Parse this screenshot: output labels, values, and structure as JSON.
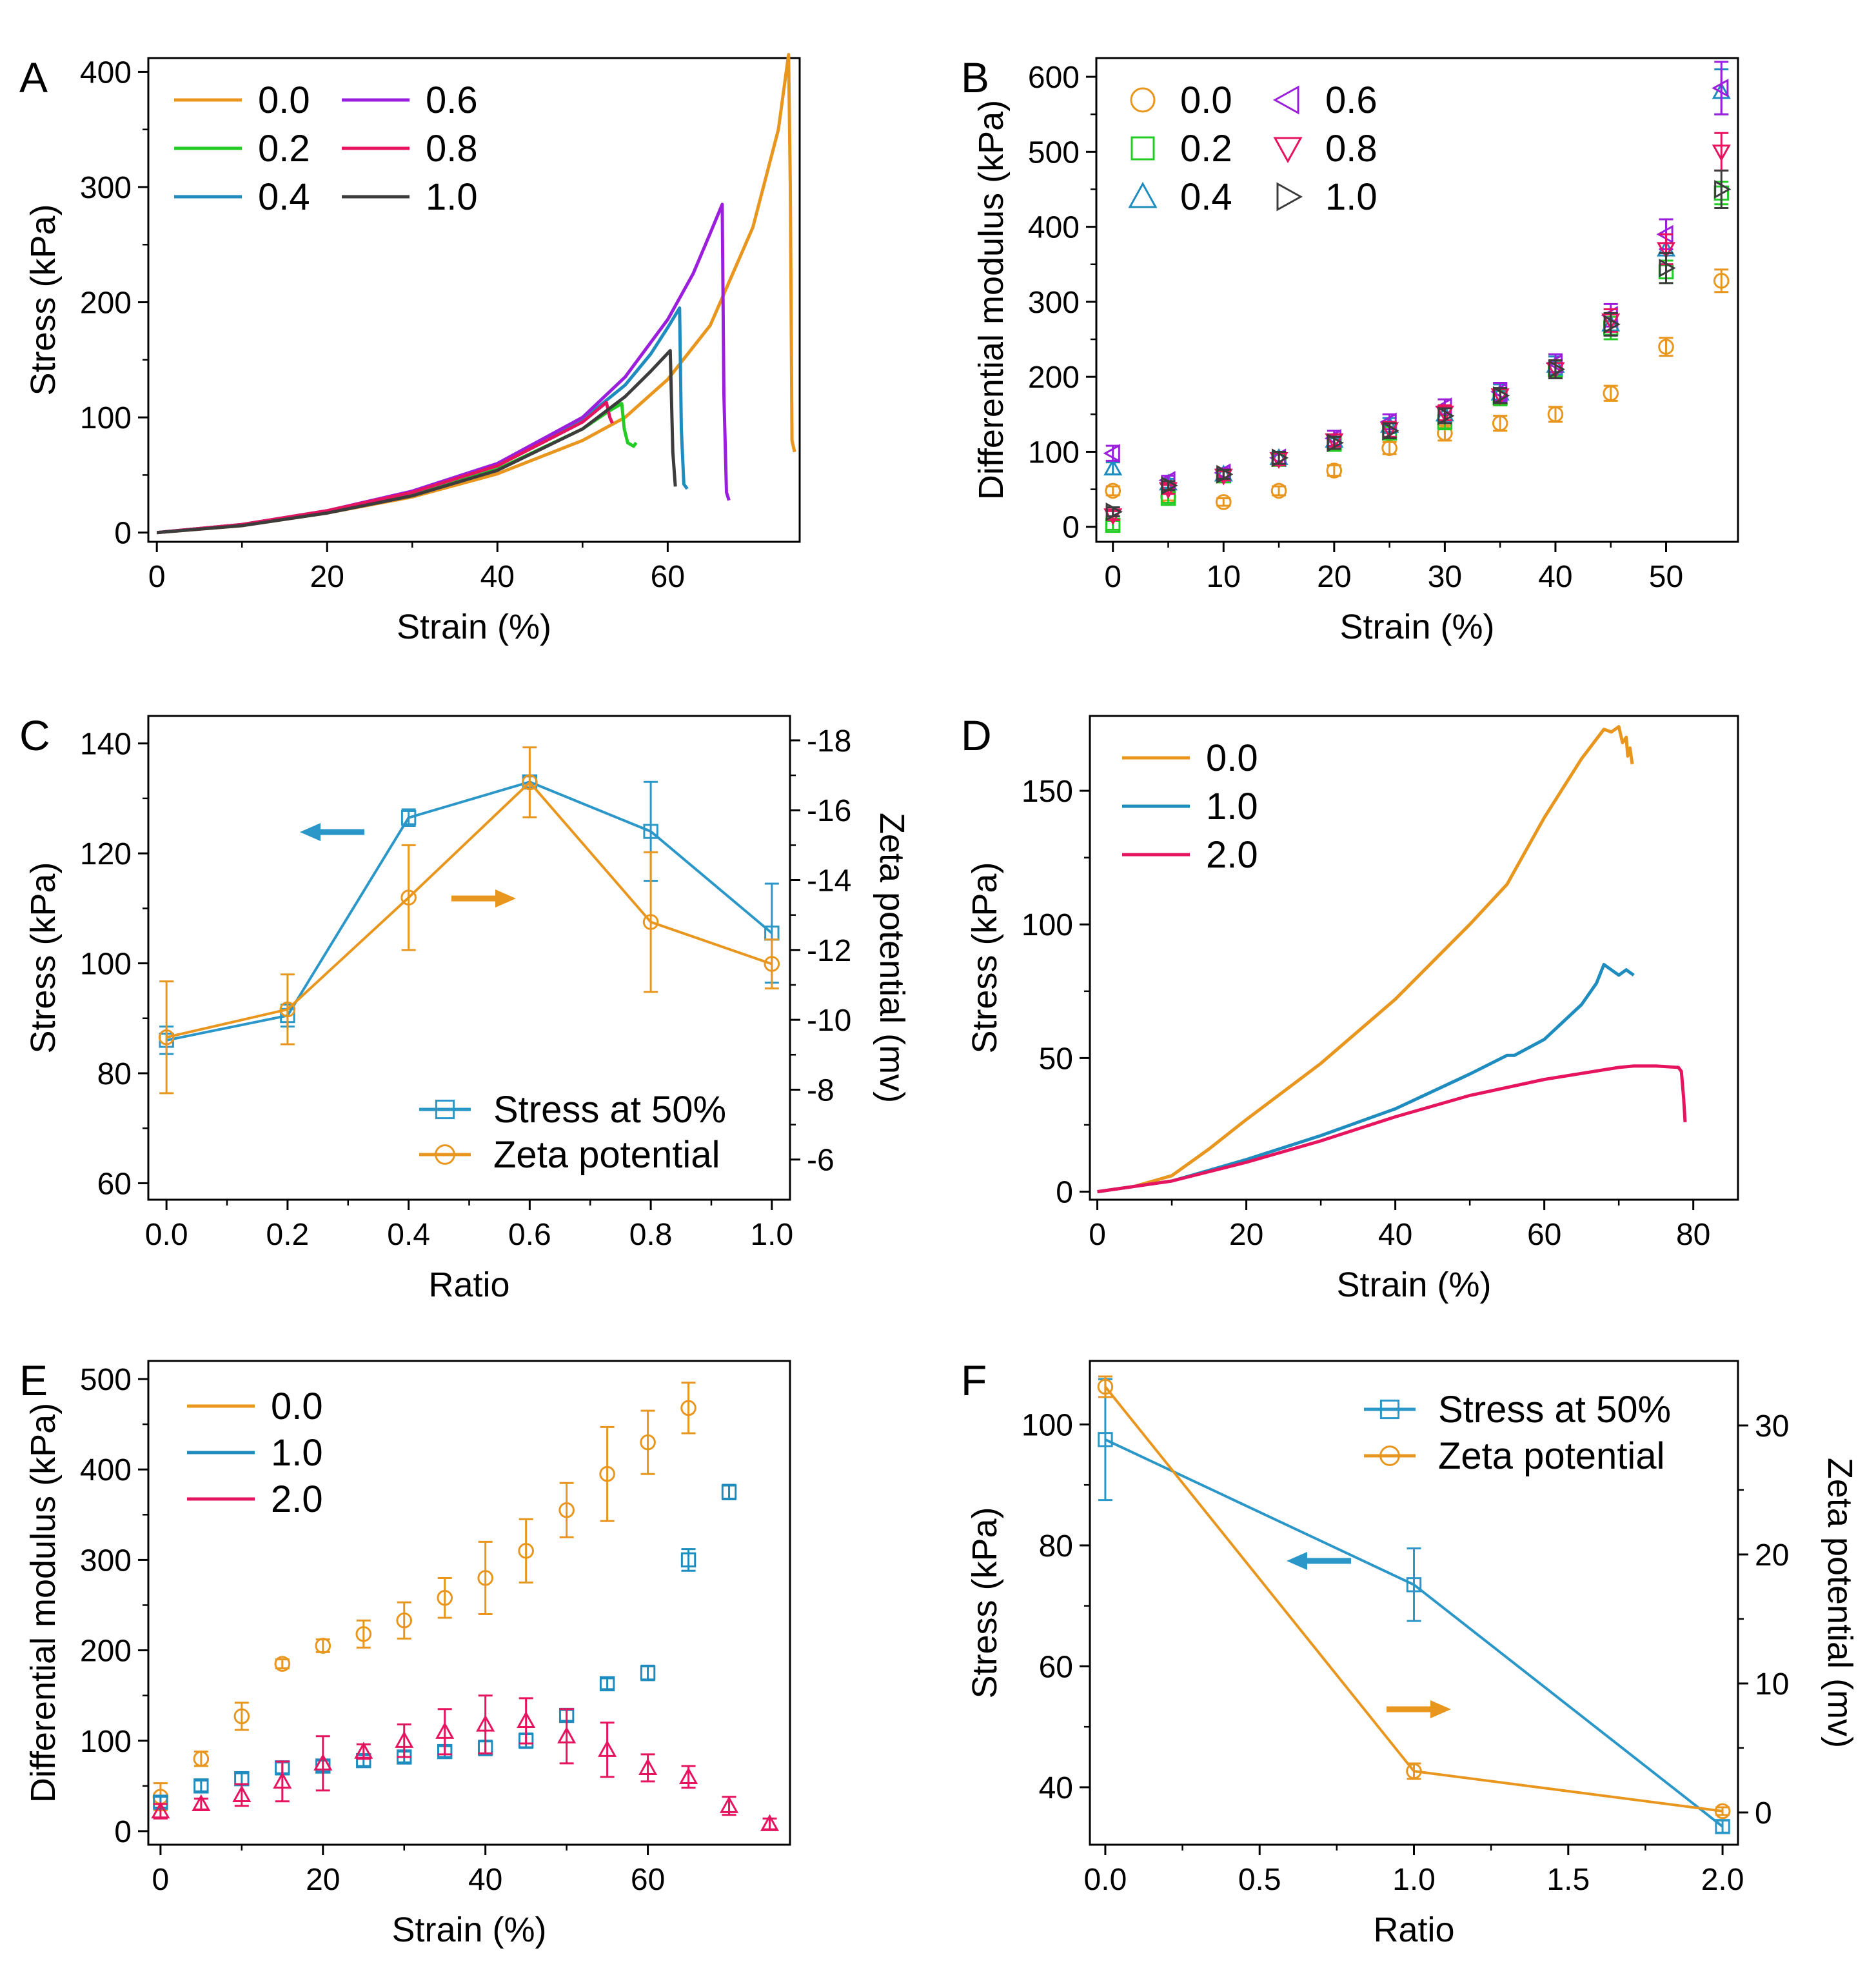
{
  "colors": {
    "c0": "#E8961E",
    "c02": "#22CC22",
    "c04": "#1E8CBE",
    "c06": "#9A1EDC",
    "c08": "#E6145F",
    "c10": "#3C3C3C",
    "blue": "#2A97C8",
    "orange": "#E8961E"
  },
  "chart_data": [
    {
      "id": "A",
      "panel_label": "A",
      "type": "line",
      "xlabel": "Strain (%)",
      "ylabel": "Stress (kPa)",
      "xlim": [
        -1,
        75.5
      ],
      "ylim": [
        -8,
        412
      ],
      "xticks": [
        "0",
        "20",
        "40",
        "60"
      ],
      "yticks": [
        "0",
        "100",
        "200",
        "300",
        "400"
      ],
      "legend": [
        "0.0",
        "0.2",
        "0.4",
        "0.6",
        "0.8",
        "1.0"
      ],
      "series": [
        {
          "name": "0.0",
          "color": "c0",
          "x": [
            0,
            10,
            20,
            30,
            40,
            50,
            55,
            60,
            65,
            70,
            73,
            74.2,
            74.4,
            74.6,
            74.9
          ],
          "y": [
            0,
            6,
            17,
            31,
            51,
            80,
            100,
            133,
            180,
            265,
            350,
            415,
            300,
            80,
            70
          ]
        },
        {
          "name": "0.2",
          "color": "c02",
          "x": [
            0,
            10,
            20,
            30,
            40,
            50,
            53,
            54.6,
            54.9,
            55.3,
            56,
            56.3
          ],
          "y": [
            0,
            7,
            18,
            33,
            55,
            90,
            105,
            112,
            90,
            78,
            75,
            78
          ]
        },
        {
          "name": "0.4",
          "color": "c04",
          "x": [
            0,
            10,
            20,
            30,
            40,
            50,
            55,
            58,
            60,
            61.4,
            61.6,
            61.9,
            62.3
          ],
          "y": [
            0,
            7,
            19,
            35,
            58,
            98,
            128,
            155,
            178,
            195,
            90,
            42,
            38
          ]
        },
        {
          "name": "0.6",
          "color": "c06",
          "x": [
            0,
            10,
            20,
            30,
            40,
            50,
            55,
            60,
            63,
            65,
            66.4,
            66.6,
            66.9,
            67.2
          ],
          "y": [
            0,
            7,
            19,
            36,
            60,
            100,
            135,
            185,
            225,
            260,
            285,
            120,
            35,
            28
          ]
        },
        {
          "name": "0.8",
          "color": "c08",
          "x": [
            0,
            10,
            20,
            30,
            40,
            50,
            52.8,
            53.2,
            53.5
          ],
          "y": [
            0,
            7,
            19,
            35,
            58,
            96,
            113,
            100,
            95
          ]
        },
        {
          "name": "1.0",
          "color": "c10",
          "x": [
            0,
            10,
            20,
            30,
            40,
            50,
            55,
            58,
            60.3,
            60.6,
            60.9
          ],
          "y": [
            0,
            6,
            17,
            32,
            54,
            90,
            118,
            140,
            158,
            70,
            40
          ]
        }
      ]
    },
    {
      "id": "B",
      "panel_label": "B",
      "type": "scatter",
      "xlabel": "Strain (%)",
      "ylabel": "Differential modulus (kPa)",
      "xlim": [
        -1.5,
        56.5
      ],
      "ylim": [
        -20,
        625
      ],
      "xticks": [
        "0",
        "10",
        "20",
        "30",
        "40",
        "50"
      ],
      "yticks": [
        "0",
        "100",
        "200",
        "300",
        "400",
        "500",
        "600"
      ],
      "legend": [
        "0.0",
        "0.2",
        "0.4",
        "0.6",
        "0.8",
        "1.0"
      ],
      "x": [
        0,
        5,
        10,
        15,
        20,
        25,
        30,
        35,
        40,
        45,
        50,
        55
      ],
      "series": [
        {
          "name": "0.0",
          "marker": "circle",
          "color": "c0",
          "values": [
            48,
            40,
            33,
            48,
            75,
            105,
            125,
            138,
            150,
            178,
            240,
            328
          ],
          "err": [
            6,
            5,
            5,
            6,
            7,
            8,
            10,
            10,
            10,
            10,
            12,
            15
          ]
        },
        {
          "name": "0.2",
          "marker": "square",
          "color": "c02",
          "values": [
            2,
            38,
            68,
            90,
            110,
            125,
            140,
            172,
            210,
            265,
            340,
            445
          ],
          "err": [
            6,
            6,
            6,
            6,
            8,
            8,
            10,
            10,
            10,
            15,
            15,
            15
          ]
        },
        {
          "name": "0.4",
          "marker": "triangle-up",
          "color": "c04",
          "values": [
            78,
            58,
            70,
            92,
            115,
            135,
            150,
            178,
            215,
            270,
            370,
            580
          ],
          "err": [
            8,
            6,
            6,
            8,
            8,
            10,
            10,
            12,
            12,
            15,
            20,
            30
          ]
        },
        {
          "name": "0.6",
          "marker": "triangle-left",
          "color": "c06",
          "values": [
            98,
            62,
            72,
            92,
            118,
            140,
            160,
            180,
            218,
            282,
            390,
            585
          ],
          "err": [
            10,
            6,
            6,
            8,
            10,
            10,
            10,
            12,
            12,
            15,
            20,
            35
          ]
        },
        {
          "name": "0.8",
          "marker": "triangle-down",
          "color": "c08",
          "values": [
            15,
            50,
            68,
            90,
            115,
            130,
            152,
            175,
            210,
            275,
            370,
            500
          ],
          "err": [
            6,
            6,
            6,
            8,
            8,
            10,
            10,
            10,
            12,
            15,
            20,
            25
          ]
        },
        {
          "name": "1.0",
          "marker": "triangle-right",
          "color": "c10",
          "values": [
            20,
            55,
            70,
            92,
            112,
            128,
            148,
            175,
            210,
            270,
            345,
            450
          ],
          "err": [
            6,
            6,
            6,
            8,
            8,
            10,
            10,
            10,
            12,
            15,
            20,
            25
          ]
        }
      ]
    },
    {
      "id": "C",
      "panel_label": "C",
      "type": "line",
      "xlabel": "Ratio",
      "ylabel": "Stress (kPa)",
      "y2label": "Zeta potential (mv)",
      "xlim": [
        -0.03,
        1.03
      ],
      "ylim": [
        57,
        145
      ],
      "y2lim": [
        -4.85,
        -18.7
      ],
      "xticks": [
        "0.0",
        "0.2",
        "0.4",
        "0.6",
        "0.8",
        "1.0"
      ],
      "yticks": [
        "60",
        "80",
        "100",
        "120",
        "140"
      ],
      "y2ticks": [
        "-6",
        "-8",
        "-10",
        "-12",
        "-14",
        "-16",
        "-18"
      ],
      "legend": [
        "Stress at 50%",
        "Zeta potential"
      ],
      "x": [
        0,
        0.2,
        0.4,
        0.6,
        0.8,
        1.0
      ],
      "series": [
        {
          "name": "Stress at 50%",
          "axis": "left",
          "marker": "square",
          "color": "blue",
          "values": [
            86,
            90.5,
            126.5,
            133,
            124,
            105.5
          ],
          "err": [
            2.5,
            2,
            1.5,
            1,
            9,
            9
          ]
        },
        {
          "name": "Zeta potential",
          "axis": "right",
          "marker": "circle",
          "color": "orange",
          "values": [
            -9.5,
            -10.3,
            -13.5,
            -16.8,
            -12.8,
            -11.6
          ],
          "err": [
            1.6,
            1.0,
            1.5,
            1.0,
            2.0,
            0.7
          ]
        }
      ]
    },
    {
      "id": "D",
      "panel_label": "D",
      "type": "line",
      "xlabel": "Strain (%)",
      "ylabel": "Stress (kPa)",
      "xlim": [
        -1,
        86
      ],
      "ylim": [
        -3,
        178
      ],
      "xticks": [
        "0",
        "20",
        "40",
        "60",
        "80"
      ],
      "yticks": [
        "0",
        "50",
        "100",
        "150"
      ],
      "legend": [
        "0.0",
        "1.0",
        "2.0"
      ],
      "series": [
        {
          "name": "0.0",
          "color": "c0",
          "x": [
            0,
            5,
            10,
            15,
            20,
            30,
            40,
            50,
            55,
            56,
            60,
            65,
            68,
            69,
            70,
            70.5,
            71,
            71.2,
            71.5,
            71.8
          ],
          "y": [
            0,
            2,
            6,
            16,
            27,
            48,
            72,
            100,
            115,
            120,
            140,
            162,
            173,
            172,
            174,
            168,
            170,
            163,
            166,
            160
          ]
        },
        {
          "name": "1.0",
          "color": "c04",
          "x": [
            0,
            10,
            20,
            30,
            40,
            50,
            55,
            56,
            60,
            65,
            67,
            68,
            69,
            70,
            71,
            72
          ],
          "y": [
            0,
            4,
            12,
            21,
            31,
            44,
            51,
            51,
            57,
            70,
            78,
            85,
            83,
            81,
            83,
            81
          ]
        },
        {
          "name": "2.0",
          "color": "c08",
          "x": [
            0,
            10,
            20,
            30,
            40,
            50,
            60,
            70,
            72,
            75,
            78,
            78.4,
            78.7,
            78.9
          ],
          "y": [
            0,
            4,
            11,
            19,
            28,
            36,
            42,
            46.5,
            47,
            47,
            46.5,
            45,
            35,
            26
          ]
        }
      ]
    },
    {
      "id": "E",
      "panel_label": "E",
      "type": "scatter",
      "xlabel": "Strain (%)",
      "ylabel": "Differential modulus (kPa)",
      "xlim": [
        -1.5,
        77.5
      ],
      "ylim": [
        -15,
        520
      ],
      "xticks": [
        "0",
        "20",
        "40",
        "60"
      ],
      "yticks": [
        "0",
        "100",
        "200",
        "300",
        "400",
        "500"
      ],
      "legend": [
        "0.0",
        "1.0",
        "2.0"
      ],
      "series": [
        {
          "name": "0.0",
          "marker": "circle",
          "color": "c0",
          "x": [
            0,
            5,
            10,
            15,
            20,
            25,
            30,
            35,
            40,
            45,
            50,
            55,
            60,
            65
          ],
          "values": [
            38,
            80,
            127,
            185,
            205,
            218,
            233,
            258,
            280,
            310,
            355,
            395,
            430,
            468
          ],
          "err": [
            15,
            8,
            15,
            5,
            7,
            15,
            20,
            22,
            40,
            35,
            30,
            52,
            35,
            28
          ]
        },
        {
          "name": "1.0",
          "marker": "square",
          "color": "c04",
          "x": [
            0,
            5,
            10,
            15,
            20,
            25,
            30,
            35,
            40,
            45,
            50,
            55,
            60,
            65,
            70
          ],
          "values": [
            32,
            50,
            58,
            70,
            72,
            78,
            82,
            88,
            92,
            100,
            128,
            163,
            175,
            300,
            375
          ],
          "err": [
            6,
            6,
            6,
            6,
            6,
            6,
            6,
            6,
            8,
            8,
            6,
            6,
            8,
            12,
            8
          ]
        },
        {
          "name": "2.0",
          "marker": "triangle-up",
          "color": "c08",
          "x": [
            0,
            5,
            10,
            15,
            20,
            25,
            30,
            35,
            40,
            45,
            50,
            55,
            60,
            65,
            70,
            75
          ],
          "values": [
            22,
            30,
            40,
            55,
            75,
            88,
            100,
            110,
            118,
            122,
            105,
            90,
            70,
            60,
            28,
            8
          ],
          "err": [
            8,
            6,
            12,
            22,
            30,
            8,
            18,
            25,
            32,
            25,
            30,
            30,
            15,
            12,
            10,
            6
          ]
        }
      ]
    },
    {
      "id": "F",
      "panel_label": "F",
      "type": "line",
      "xlabel": "Ratio",
      "ylabel": "Stress (kPa)",
      "y2label": "Zeta potential (mv)",
      "xlim": [
        -0.05,
        2.05
      ],
      "ylim": [
        30.5,
        110.5
      ],
      "y2lim": [
        -2.5,
        35
      ],
      "xticks": [
        "0.0",
        "0.5",
        "1.0",
        "1.5",
        "2.0"
      ],
      "yticks": [
        "40",
        "60",
        "80",
        "100"
      ],
      "y2ticks": [
        "0",
        "10",
        "20",
        "30"
      ],
      "legend": [
        "Stress at 50%",
        "Zeta potential"
      ],
      "x": [
        0,
        1,
        2
      ],
      "series": [
        {
          "name": "Stress at 50%",
          "axis": "left",
          "marker": "square",
          "color": "blue",
          "values": [
            97.5,
            73.5,
            33.5
          ],
          "err": [
            10,
            6,
            1
          ]
        },
        {
          "name": "Zeta potential",
          "axis": "right",
          "marker": "circle",
          "color": "orange",
          "values": [
            33,
            3.2,
            0.1
          ],
          "err": [
            0.8,
            0.6,
            0.3
          ]
        }
      ]
    }
  ]
}
